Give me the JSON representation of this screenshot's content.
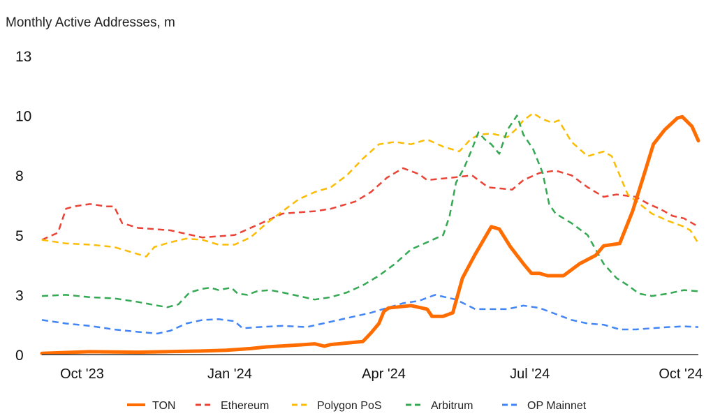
{
  "chart_data": {
    "type": "line",
    "title": "",
    "ylabel": "Monthly Active Addresses, m",
    "xlabel": "",
    "ylim": [
      0,
      12.5
    ],
    "y_ticks": [
      {
        "value": 0,
        "label": "0"
      },
      {
        "value": 2.5,
        "label": "3"
      },
      {
        "value": 5,
        "label": "5"
      },
      {
        "value": 7.5,
        "label": "8"
      },
      {
        "value": 10,
        "label": "10"
      },
      {
        "value": 12.5,
        "label": "13"
      }
    ],
    "x_range_days": [
      0,
      409
    ],
    "x_ticks": [
      {
        "day": 25,
        "label": "Oct '23"
      },
      {
        "day": 117,
        "label": "Jan '24"
      },
      {
        "day": 213,
        "label": "Apr '24"
      },
      {
        "day": 304,
        "label": "Jul '24"
      },
      {
        "day": 398,
        "label": "Oct '24"
      }
    ],
    "legend": [
      "TON",
      "Ethereum",
      "Polygon PoS",
      "Arbitrum",
      "OP Mainnet"
    ],
    "series": [
      {
        "name": "TON",
        "color": "#ff6d01",
        "dash": "solid",
        "points": [
          [
            0,
            0.05
          ],
          [
            30,
            0.12
          ],
          [
            60,
            0.1
          ],
          [
            100,
            0.15
          ],
          [
            115,
            0.18
          ],
          [
            130,
            0.25
          ],
          [
            140,
            0.32
          ],
          [
            160,
            0.4
          ],
          [
            170,
            0.45
          ],
          [
            176,
            0.35
          ],
          [
            180,
            0.42
          ],
          [
            200,
            0.55
          ],
          [
            205,
            0.9
          ],
          [
            210,
            1.3
          ],
          [
            213,
            1.8
          ],
          [
            216,
            1.95
          ],
          [
            230,
            2.05
          ],
          [
            240,
            1.9
          ],
          [
            243,
            1.6
          ],
          [
            250,
            1.6
          ],
          [
            256,
            1.75
          ],
          [
            262,
            3.2
          ],
          [
            270,
            4.2
          ],
          [
            280,
            5.35
          ],
          [
            285,
            5.25
          ],
          [
            292,
            4.5
          ],
          [
            300,
            3.8
          ],
          [
            305,
            3.4
          ],
          [
            310,
            3.4
          ],
          [
            315,
            3.3
          ],
          [
            325,
            3.3
          ],
          [
            335,
            3.8
          ],
          [
            345,
            4.15
          ],
          [
            350,
            4.55
          ],
          [
            355,
            4.6
          ],
          [
            360,
            4.65
          ],
          [
            368,
            6.0
          ],
          [
            375,
            7.5
          ],
          [
            381,
            8.8
          ],
          [
            388,
            9.4
          ],
          [
            396,
            9.9
          ],
          [
            399,
            9.95
          ],
          [
            405,
            9.55
          ],
          [
            409,
            8.95
          ]
        ]
      },
      {
        "name": "Ethereum",
        "color": "#ea4335",
        "dash": "dashed",
        "points": [
          [
            0,
            4.8
          ],
          [
            10,
            5.1
          ],
          [
            15,
            6.1
          ],
          [
            20,
            6.2
          ],
          [
            30,
            6.3
          ],
          [
            40,
            6.2
          ],
          [
            45,
            6.2
          ],
          [
            50,
            5.5
          ],
          [
            60,
            5.3
          ],
          [
            80,
            5.2
          ],
          [
            100,
            4.9
          ],
          [
            120,
            5.0
          ],
          [
            140,
            5.6
          ],
          [
            150,
            5.9
          ],
          [
            170,
            6.0
          ],
          [
            180,
            6.1
          ],
          [
            195,
            6.4
          ],
          [
            205,
            6.8
          ],
          [
            215,
            7.4
          ],
          [
            225,
            7.8
          ],
          [
            235,
            7.55
          ],
          [
            240,
            7.3
          ],
          [
            255,
            7.4
          ],
          [
            268,
            7.5
          ],
          [
            278,
            7.0
          ],
          [
            293,
            6.9
          ],
          [
            300,
            7.3
          ],
          [
            310,
            7.6
          ],
          [
            320,
            7.7
          ],
          [
            330,
            7.5
          ],
          [
            340,
            7.0
          ],
          [
            350,
            6.6
          ],
          [
            358,
            6.7
          ],
          [
            370,
            6.6
          ],
          [
            378,
            6.3
          ],
          [
            385,
            6.1
          ],
          [
            393,
            5.8
          ],
          [
            400,
            5.7
          ],
          [
            409,
            5.35
          ]
        ]
      },
      {
        "name": "Polygon PoS",
        "color": "#fbbc04",
        "dash": "dashed",
        "points": [
          [
            0,
            4.8
          ],
          [
            15,
            4.65
          ],
          [
            30,
            4.6
          ],
          [
            45,
            4.5
          ],
          [
            60,
            4.2
          ],
          [
            65,
            4.1
          ],
          [
            70,
            4.5
          ],
          [
            80,
            4.7
          ],
          [
            90,
            4.85
          ],
          [
            100,
            4.8
          ],
          [
            110,
            4.6
          ],
          [
            120,
            4.6
          ],
          [
            130,
            4.9
          ],
          [
            140,
            5.5
          ],
          [
            150,
            6.0
          ],
          [
            160,
            6.5
          ],
          [
            170,
            6.8
          ],
          [
            180,
            7.0
          ],
          [
            190,
            7.5
          ],
          [
            200,
            8.2
          ],
          [
            210,
            8.8
          ],
          [
            220,
            8.9
          ],
          [
            230,
            8.8
          ],
          [
            240,
            9.0
          ],
          [
            250,
            8.7
          ],
          [
            260,
            8.5
          ],
          [
            267,
            9.0
          ],
          [
            272,
            9.2
          ],
          [
            280,
            9.25
          ],
          [
            290,
            9.1
          ],
          [
            295,
            9.4
          ],
          [
            300,
            9.8
          ],
          [
            306,
            10.1
          ],
          [
            312,
            9.85
          ],
          [
            318,
            9.7
          ],
          [
            322,
            9.8
          ],
          [
            330,
            8.9
          ],
          [
            340,
            8.3
          ],
          [
            350,
            8.5
          ],
          [
            355,
            8.3
          ],
          [
            365,
            6.7
          ],
          [
            380,
            5.9
          ],
          [
            390,
            5.6
          ],
          [
            400,
            5.35
          ],
          [
            404,
            5.2
          ],
          [
            409,
            4.65
          ]
        ]
      },
      {
        "name": "Arbitrum",
        "color": "#34a853",
        "dash": "dashed",
        "points": [
          [
            0,
            2.45
          ],
          [
            15,
            2.5
          ],
          [
            30,
            2.4
          ],
          [
            45,
            2.35
          ],
          [
            60,
            2.2
          ],
          [
            72,
            2.05
          ],
          [
            78,
            1.98
          ],
          [
            85,
            2.1
          ],
          [
            92,
            2.6
          ],
          [
            100,
            2.75
          ],
          [
            105,
            2.8
          ],
          [
            110,
            2.7
          ],
          [
            118,
            2.8
          ],
          [
            122,
            2.55
          ],
          [
            128,
            2.5
          ],
          [
            134,
            2.65
          ],
          [
            142,
            2.7
          ],
          [
            150,
            2.6
          ],
          [
            160,
            2.45
          ],
          [
            170,
            2.3
          ],
          [
            180,
            2.4
          ],
          [
            190,
            2.6
          ],
          [
            200,
            2.9
          ],
          [
            210,
            3.3
          ],
          [
            220,
            3.8
          ],
          [
            230,
            4.4
          ],
          [
            240,
            4.7
          ],
          [
            250,
            5.0
          ],
          [
            254,
            5.8
          ],
          [
            258,
            7.2
          ],
          [
            263,
            7.8
          ],
          [
            268,
            8.6
          ],
          [
            272,
            9.3
          ],
          [
            276,
            9.0
          ],
          [
            280,
            8.8
          ],
          [
            285,
            8.4
          ],
          [
            290,
            9.4
          ],
          [
            296,
            10.0
          ],
          [
            300,
            9.2
          ],
          [
            306,
            8.6
          ],
          [
            312,
            7.6
          ],
          [
            316,
            6.3
          ],
          [
            320,
            5.9
          ],
          [
            330,
            5.5
          ],
          [
            340,
            5.0
          ],
          [
            345,
            4.4
          ],
          [
            350,
            3.8
          ],
          [
            358,
            3.2
          ],
          [
            365,
            2.9
          ],
          [
            372,
            2.55
          ],
          [
            380,
            2.45
          ],
          [
            390,
            2.55
          ],
          [
            400,
            2.7
          ],
          [
            409,
            2.65
          ]
        ]
      },
      {
        "name": "OP Mainnet",
        "color": "#4285f4",
        "dash": "dashed",
        "points": [
          [
            0,
            1.45
          ],
          [
            15,
            1.3
          ],
          [
            30,
            1.2
          ],
          [
            45,
            1.05
          ],
          [
            60,
            0.95
          ],
          [
            72,
            0.88
          ],
          [
            80,
            1.0
          ],
          [
            90,
            1.3
          ],
          [
            100,
            1.45
          ],
          [
            110,
            1.48
          ],
          [
            120,
            1.4
          ],
          [
            125,
            1.1
          ],
          [
            135,
            1.15
          ],
          [
            150,
            1.2
          ],
          [
            165,
            1.15
          ],
          [
            175,
            1.3
          ],
          [
            185,
            1.45
          ],
          [
            195,
            1.6
          ],
          [
            205,
            1.75
          ],
          [
            215,
            1.95
          ],
          [
            225,
            2.15
          ],
          [
            235,
            2.25
          ],
          [
            245,
            2.5
          ],
          [
            258,
            2.3
          ],
          [
            270,
            1.9
          ],
          [
            280,
            1.9
          ],
          [
            290,
            1.9
          ],
          [
            300,
            2.05
          ],
          [
            310,
            1.95
          ],
          [
            320,
            1.7
          ],
          [
            330,
            1.45
          ],
          [
            340,
            1.3
          ],
          [
            350,
            1.25
          ],
          [
            360,
            1.05
          ],
          [
            370,
            1.05
          ],
          [
            380,
            1.1
          ],
          [
            390,
            1.15
          ],
          [
            400,
            1.18
          ],
          [
            409,
            1.15
          ]
        ]
      }
    ]
  }
}
